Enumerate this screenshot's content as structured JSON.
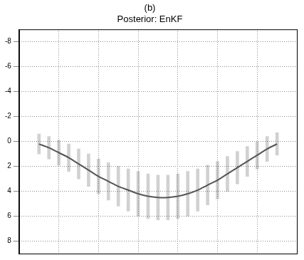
{
  "chart_data": {
    "type": "line",
    "title": "(b)",
    "subtitle": "Posterior: EnKF",
    "x": [
      0,
      5,
      10,
      15,
      20,
      25,
      30,
      35,
      40,
      45,
      50,
      55,
      60,
      65,
      70,
      75,
      80,
      85,
      90,
      95,
      100,
      105,
      110,
      115,
      120
    ],
    "series": [
      {
        "color": "#555555",
        "values": [
          0.2,
          0.5,
          0.9,
          1.3,
          1.8,
          2.3,
          2.8,
          3.2,
          3.6,
          3.9,
          4.2,
          4.4,
          4.5,
          4.5,
          4.4,
          4.2,
          3.9,
          3.5,
          3.1,
          2.6,
          2.1,
          1.6,
          1.1,
          0.6,
          0.2
        ],
        "lower": [
          -0.6,
          -0.4,
          -0.1,
          0.2,
          0.6,
          1.0,
          1.4,
          1.7,
          2.0,
          2.2,
          2.4,
          2.6,
          2.7,
          2.7,
          2.6,
          2.4,
          2.2,
          1.9,
          1.6,
          1.2,
          0.8,
          0.4,
          0.0,
          -0.4,
          -0.7
        ],
        "upper": [
          1.0,
          1.4,
          1.9,
          2.4,
          3.0,
          3.6,
          4.2,
          4.7,
          5.2,
          5.6,
          6.0,
          6.2,
          6.3,
          6.3,
          6.2,
          6.0,
          5.6,
          5.1,
          4.6,
          4.0,
          3.4,
          2.8,
          2.2,
          1.6,
          1.1
        ]
      }
    ],
    "xlim": [
      0,
      120
    ],
    "xticks": [
      0,
      20,
      40,
      60,
      80,
      100,
      120
    ],
    "ylim": [
      9,
      -9
    ],
    "yticks": [
      -8,
      -6,
      -4,
      -2,
      0,
      2,
      4,
      6,
      8
    ],
    "grid": true,
    "tick_labels": "y"
  }
}
